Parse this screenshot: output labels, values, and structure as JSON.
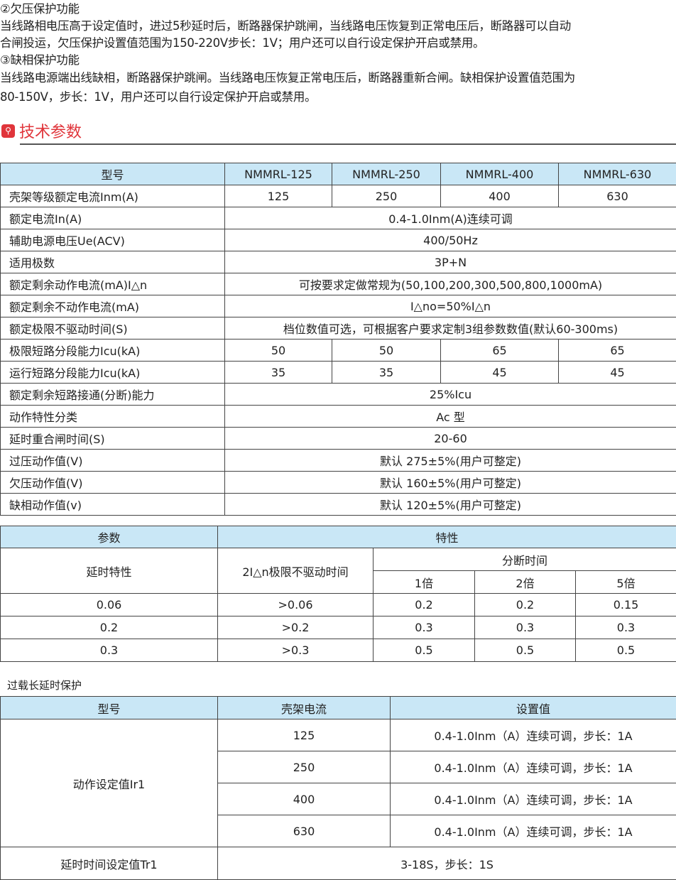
{
  "intro": {
    "under_title": "②欠压保护功能",
    "under_l1": "当线路相电压高于设定值时，进过5秒延时后，断路器保护跳闸，当线路电压恢复到正常电压后，断路器可以自动",
    "under_l2": "合闸投运，欠压保护设置值范围为150-220V步长：1V；用户还可以自行设定保护开启或禁用。",
    "phase_title": "③缺相保护功能",
    "phase_l1": "当线路电源端出线缺相，断路器保护跳闸。当线路电压恢复正常电压后，断路器重新合闸。缺相保护设置值范围为",
    "phase_l2": "80-150V，步长：1V，用户还可以自行设定保护开启或禁用。"
  },
  "section": {
    "title": "技术参数",
    "icon": "search-icon",
    "color": "#e0353b"
  },
  "spec": {
    "header": [
      "型号",
      "NMMRL-125",
      "NMMRL-250",
      "NMMRL-400",
      "NMMRL-630"
    ],
    "rows": [
      [
        "壳架等级额定电流Inm(A)",
        "125",
        "250",
        "400",
        "630"
      ],
      [
        "额定电流In(A)",
        "0.4-1.0Inm(A)连续可调"
      ],
      [
        "辅助电源电压Ue(ACV)",
        "400/50Hz"
      ],
      [
        "适用极数",
        "3P+N"
      ],
      [
        "额定剩余动作电流(mA)I△n",
        "可按要求定做常规为(50,100,200,300,500,800,1000mA)"
      ],
      [
        "额定剩余不动作电流(mA)",
        "I△no=50%I△n"
      ],
      [
        "额定极限不驱动时间(S)",
        "档位数值可选，可根据客户要求定制3组参数数值(默认60-300ms)"
      ],
      [
        "极限短路分段能力Icu(kA)",
        "50",
        "50",
        "65",
        "65"
      ],
      [
        "运行短路分段能力Icu(kA)",
        "35",
        "35",
        "45",
        "45"
      ],
      [
        "额定剩余短路接通(分断)能力",
        "25%Icu"
      ],
      [
        "动作特性分类",
        "Ac 型"
      ],
      [
        "延时重合闸时间(S)",
        "20-60"
      ],
      [
        "过压动作值(V)",
        "默认 275±5%(用户可整定)"
      ],
      [
        "欠压动作值(V)",
        "默认 160±5%(用户可整定)"
      ],
      [
        "缺相动作值(v)",
        "默认 120±5%(用户可整定)"
      ]
    ]
  },
  "delay": {
    "h_param": "参数",
    "h_char": "特性",
    "c_delay": "延时特性",
    "c_nodrive": "2I△n极限不驱动时间",
    "c_break": "分断时间",
    "multiples": [
      "1倍",
      "2倍",
      "5倍"
    ],
    "rows": [
      [
        "0.06",
        ">0.06",
        "0.2",
        "0.2",
        "0.15"
      ],
      [
        "0.2",
        ">0.2",
        "0.3",
        "0.3",
        "0.3"
      ],
      [
        "0.3",
        ">0.3",
        "0.5",
        "0.5",
        "0.5"
      ]
    ]
  },
  "overload": {
    "caption": "过载长延时保护",
    "header": [
      "型号",
      "壳架电流",
      "设置值"
    ],
    "ir1_label": "动作设定值Ir1",
    "ir1_rows": [
      [
        "125",
        "0.4-1.0Inm（A）连续可调，步长：1A"
      ],
      [
        "250",
        "0.4-1.0Inm（A）连续可调，步长：1A"
      ],
      [
        "400",
        "0.4-1.0Inm（A）连续可调，步长：1A"
      ],
      [
        "630",
        "0.4-1.0Inm（A）连续可调，步长：1A"
      ]
    ],
    "tr1_label": "延时时间设定值Tr1",
    "tr1_value": "3-18S，步长：1S"
  }
}
